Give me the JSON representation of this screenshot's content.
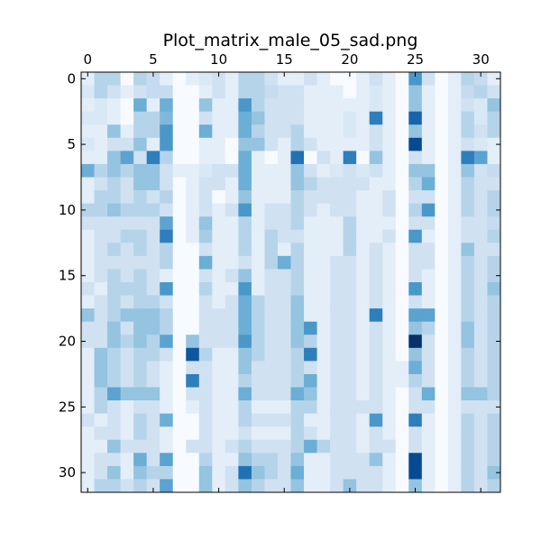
{
  "chart_data": {
    "type": "heatmap",
    "title": "Plot_matrix_male_05_sad.png",
    "colormap": "Blues",
    "x_axis_position": "top",
    "x_range": [
      -0.5,
      31.5
    ],
    "y_range": [
      -0.5,
      31.5
    ],
    "x_ticks": [
      0,
      5,
      10,
      15,
      20,
      25,
      30
    ],
    "y_ticks": [
      0,
      5,
      10,
      15,
      20,
      25,
      30
    ],
    "grid": false,
    "values_scale": "0 (white) to 1 (darkest blue), estimated from cell shading",
    "values": [
      [
        0.1,
        0.3,
        0.3,
        0.0,
        0.3,
        0.25,
        0.1,
        0.0,
        0.1,
        0.15,
        0.2,
        0.1,
        0.3,
        0.3,
        0.2,
        0.1,
        0.1,
        0.2,
        0.1,
        0.0,
        0.0,
        0.1,
        0.2,
        0.1,
        0.0,
        0.6,
        0.2,
        0.0,
        0.1,
        0.3,
        0.25,
        0.1
      ],
      [
        0.15,
        0.3,
        0.2,
        0.1,
        0.2,
        0.25,
        0.25,
        0.0,
        0.0,
        0.1,
        0.2,
        0.1,
        0.3,
        0.3,
        0.25,
        0.2,
        0.2,
        0.1,
        0.1,
        0.1,
        0.0,
        0.1,
        0.15,
        0.1,
        0.0,
        0.4,
        0.1,
        0.0,
        0.1,
        0.25,
        0.3,
        0.2
      ],
      [
        0.1,
        0.15,
        0.1,
        0.0,
        0.5,
        0.1,
        0.5,
        0.0,
        0.0,
        0.4,
        0.1,
        0.1,
        0.6,
        0.3,
        0.2,
        0.2,
        0.2,
        0.1,
        0.1,
        0.1,
        0.1,
        0.1,
        0.15,
        0.1,
        0.0,
        0.4,
        0.1,
        0.0,
        0.1,
        0.2,
        0.15,
        0.4
      ],
      [
        0.15,
        0.15,
        0.1,
        0.0,
        0.3,
        0.3,
        0.45,
        0.0,
        0.0,
        0.2,
        0.1,
        0.1,
        0.5,
        0.4,
        0.2,
        0.2,
        0.2,
        0.1,
        0.1,
        0.1,
        0.15,
        0.1,
        0.7,
        0.1,
        0.0,
        0.8,
        0.1,
        0.0,
        0.1,
        0.3,
        0.15,
        0.3
      ],
      [
        0.1,
        0.1,
        0.4,
        0.1,
        0.3,
        0.3,
        0.6,
        0.0,
        0.0,
        0.5,
        0.1,
        0.1,
        0.5,
        0.3,
        0.2,
        0.2,
        0.3,
        0.1,
        0.1,
        0.1,
        0.15,
        0.1,
        0.2,
        0.1,
        0.0,
        0.4,
        0.1,
        0.0,
        0.1,
        0.3,
        0.2,
        0.3
      ],
      [
        0.15,
        0.1,
        0.2,
        0.2,
        0.4,
        0.1,
        0.6,
        0.0,
        0.0,
        0.1,
        0.1,
        0.0,
        0.4,
        0.4,
        0.2,
        0.1,
        0.3,
        0.2,
        0.1,
        0.1,
        0.1,
        0.1,
        0.2,
        0.1,
        0.0,
        0.9,
        0.1,
        0.0,
        0.1,
        0.2,
        0.15,
        0.1
      ],
      [
        0.1,
        0.1,
        0.4,
        0.55,
        0.2,
        0.7,
        0.3,
        0.0,
        0.0,
        0.1,
        0.1,
        0.0,
        0.5,
        0.1,
        0.0,
        0.1,
        0.75,
        0.0,
        0.2,
        0.1,
        0.7,
        0.0,
        0.4,
        0.1,
        0.0,
        0.2,
        0.1,
        0.0,
        0.1,
        0.7,
        0.55,
        0.1
      ],
      [
        0.5,
        0.3,
        0.4,
        0.3,
        0.4,
        0.4,
        0.2,
        0.1,
        0.1,
        0.15,
        0.2,
        0.2,
        0.5,
        0.1,
        0.1,
        0.1,
        0.4,
        0.2,
        0.1,
        0.15,
        0.2,
        0.15,
        0.2,
        0.1,
        0.0,
        0.4,
        0.4,
        0.0,
        0.1,
        0.4,
        0.2,
        0.25
      ],
      [
        0.1,
        0.2,
        0.3,
        0.2,
        0.4,
        0.4,
        0.2,
        0.0,
        0.1,
        0.2,
        0.2,
        0.1,
        0.5,
        0.1,
        0.1,
        0.1,
        0.4,
        0.3,
        0.2,
        0.2,
        0.2,
        0.2,
        0.1,
        0.1,
        0.0,
        0.3,
        0.5,
        0.0,
        0.1,
        0.3,
        0.2,
        0.2
      ],
      [
        0.1,
        0.3,
        0.3,
        0.2,
        0.3,
        0.2,
        0.3,
        0.0,
        0.1,
        0.2,
        0.0,
        0.1,
        0.4,
        0.1,
        0.1,
        0.1,
        0.3,
        0.2,
        0.2,
        0.2,
        0.2,
        0.1,
        0.1,
        0.2,
        0.0,
        0.2,
        0.2,
        0.0,
        0.1,
        0.3,
        0.2,
        0.3
      ],
      [
        0.3,
        0.3,
        0.4,
        0.3,
        0.3,
        0.3,
        0.2,
        0.0,
        0.1,
        0.2,
        0.1,
        0.2,
        0.6,
        0.1,
        0.2,
        0.2,
        0.3,
        0.2,
        0.1,
        0.2,
        0.2,
        0.1,
        0.1,
        0.2,
        0.0,
        0.3,
        0.6,
        0.0,
        0.1,
        0.3,
        0.2,
        0.3
      ],
      [
        0.2,
        0.2,
        0.2,
        0.2,
        0.2,
        0.2,
        0.55,
        0.0,
        0.1,
        0.4,
        0.1,
        0.1,
        0.3,
        0.1,
        0.2,
        0.2,
        0.3,
        0.1,
        0.1,
        0.1,
        0.3,
        0.1,
        0.1,
        0.1,
        0.0,
        0.2,
        0.2,
        0.0,
        0.1,
        0.2,
        0.2,
        0.25
      ],
      [
        0.1,
        0.2,
        0.2,
        0.3,
        0.3,
        0.2,
        0.7,
        0.0,
        0.1,
        0.35,
        0.1,
        0.1,
        0.3,
        0.1,
        0.3,
        0.2,
        0.2,
        0.1,
        0.1,
        0.1,
        0.3,
        0.1,
        0.1,
        0.2,
        0.0,
        0.6,
        0.1,
        0.0,
        0.1,
        0.2,
        0.2,
        0.3
      ],
      [
        0.1,
        0.2,
        0.3,
        0.2,
        0.3,
        0.2,
        0.3,
        0.0,
        0.0,
        0.2,
        0.1,
        0.1,
        0.3,
        0.1,
        0.3,
        0.1,
        0.3,
        0.1,
        0.1,
        0.1,
        0.3,
        0.1,
        0.2,
        0.1,
        0.0,
        0.2,
        0.2,
        0.0,
        0.1,
        0.4,
        0.2,
        0.2
      ],
      [
        0.1,
        0.2,
        0.2,
        0.2,
        0.2,
        0.2,
        0.3,
        0.0,
        0.0,
        0.5,
        0.1,
        0.1,
        0.2,
        0.1,
        0.3,
        0.5,
        0.3,
        0.1,
        0.1,
        0.2,
        0.2,
        0.1,
        0.2,
        0.1,
        0.0,
        0.2,
        0.2,
        0.0,
        0.1,
        0.3,
        0.2,
        0.3
      ],
      [
        0.1,
        0.2,
        0.3,
        0.2,
        0.3,
        0.2,
        0.1,
        0.0,
        0.0,
        0.2,
        0.1,
        0.2,
        0.4,
        0.1,
        0.2,
        0.2,
        0.3,
        0.1,
        0.1,
        0.2,
        0.2,
        0.1,
        0.2,
        0.1,
        0.0,
        0.2,
        0.1,
        0.0,
        0.1,
        0.3,
        0.2,
        0.3
      ],
      [
        0.2,
        0.1,
        0.3,
        0.3,
        0.3,
        0.2,
        0.6,
        0.0,
        0.0,
        0.3,
        0.1,
        0.1,
        0.6,
        0.1,
        0.2,
        0.2,
        0.3,
        0.1,
        0.1,
        0.2,
        0.2,
        0.1,
        0.2,
        0.1,
        0.0,
        0.6,
        0.1,
        0.0,
        0.1,
        0.3,
        0.2,
        0.4
      ],
      [
        0.1,
        0.2,
        0.3,
        0.2,
        0.3,
        0.3,
        0.2,
        0.0,
        0.0,
        0.2,
        0.1,
        0.2,
        0.5,
        0.3,
        0.2,
        0.2,
        0.4,
        0.1,
        0.1,
        0.2,
        0.2,
        0.1,
        0.2,
        0.1,
        0.0,
        0.2,
        0.1,
        0.0,
        0.1,
        0.3,
        0.2,
        0.3
      ],
      [
        0.4,
        0.2,
        0.3,
        0.4,
        0.4,
        0.4,
        0.3,
        0.0,
        0.0,
        0.2,
        0.2,
        0.2,
        0.5,
        0.3,
        0.2,
        0.2,
        0.4,
        0.1,
        0.1,
        0.2,
        0.2,
        0.1,
        0.7,
        0.1,
        0.0,
        0.55,
        0.55,
        0.0,
        0.1,
        0.3,
        0.2,
        0.3
      ],
      [
        0.2,
        0.2,
        0.4,
        0.2,
        0.4,
        0.4,
        0.3,
        0.0,
        0.0,
        0.2,
        0.2,
        0.2,
        0.5,
        0.3,
        0.2,
        0.2,
        0.4,
        0.6,
        0.1,
        0.2,
        0.2,
        0.1,
        0.2,
        0.1,
        0.0,
        0.4,
        0.3,
        0.0,
        0.1,
        0.4,
        0.2,
        0.3
      ],
      [
        0.2,
        0.2,
        0.4,
        0.3,
        0.4,
        0.3,
        0.55,
        0.0,
        0.4,
        0.2,
        0.2,
        0.2,
        0.6,
        0.3,
        0.2,
        0.2,
        0.4,
        0.3,
        0.1,
        0.2,
        0.2,
        0.1,
        0.2,
        0.1,
        0.0,
        1.0,
        0.2,
        0.0,
        0.1,
        0.4,
        0.2,
        0.3
      ],
      [
        0.1,
        0.4,
        0.3,
        0.2,
        0.3,
        0.3,
        0.2,
        0.0,
        0.85,
        0.3,
        0.1,
        0.1,
        0.4,
        0.3,
        0.2,
        0.2,
        0.3,
        0.7,
        0.1,
        0.2,
        0.2,
        0.1,
        0.2,
        0.1,
        0.0,
        0.4,
        0.2,
        0.0,
        0.1,
        0.3,
        0.2,
        0.3
      ],
      [
        0.1,
        0.4,
        0.3,
        0.2,
        0.3,
        0.2,
        0.1,
        0.0,
        0.2,
        0.2,
        0.1,
        0.1,
        0.4,
        0.2,
        0.2,
        0.2,
        0.3,
        0.2,
        0.1,
        0.2,
        0.2,
        0.1,
        0.2,
        0.1,
        0.1,
        0.5,
        0.2,
        0.0,
        0.1,
        0.3,
        0.2,
        0.3
      ],
      [
        0.1,
        0.4,
        0.3,
        0.2,
        0.3,
        0.2,
        0.1,
        0.0,
        0.7,
        0.2,
        0.1,
        0.1,
        0.3,
        0.2,
        0.2,
        0.2,
        0.3,
        0.5,
        0.1,
        0.2,
        0.2,
        0.1,
        0.2,
        0.1,
        0.1,
        0.3,
        0.2,
        0.0,
        0.1,
        0.3,
        0.2,
        0.3
      ],
      [
        0.1,
        0.3,
        0.55,
        0.4,
        0.4,
        0.4,
        0.1,
        0.0,
        0.2,
        0.2,
        0.1,
        0.1,
        0.5,
        0.2,
        0.2,
        0.2,
        0.5,
        0.4,
        0.1,
        0.2,
        0.2,
        0.1,
        0.2,
        0.1,
        0.0,
        0.2,
        0.5,
        0.0,
        0.1,
        0.4,
        0.4,
        0.3
      ],
      [
        0.1,
        0.3,
        0.2,
        0.1,
        0.2,
        0.2,
        0.1,
        0.0,
        0.1,
        0.2,
        0.1,
        0.1,
        0.3,
        0.1,
        0.1,
        0.1,
        0.3,
        0.3,
        0.1,
        0.2,
        0.2,
        0.2,
        0.2,
        0.1,
        0.0,
        0.2,
        0.2,
        0.0,
        0.1,
        0.2,
        0.2,
        0.2
      ],
      [
        0.2,
        0.1,
        0.2,
        0.1,
        0.3,
        0.2,
        0.5,
        0.0,
        0.0,
        0.2,
        0.1,
        0.1,
        0.3,
        0.2,
        0.2,
        0.2,
        0.3,
        0.1,
        0.1,
        0.2,
        0.2,
        0.1,
        0.6,
        0.1,
        0.0,
        0.7,
        0.1,
        0.0,
        0.1,
        0.3,
        0.2,
        0.3
      ],
      [
        0.1,
        0.2,
        0.2,
        0.1,
        0.3,
        0.2,
        0.1,
        0.0,
        0.0,
        0.2,
        0.1,
        0.1,
        0.2,
        0.1,
        0.1,
        0.1,
        0.3,
        0.2,
        0.1,
        0.2,
        0.2,
        0.1,
        0.2,
        0.1,
        0.0,
        0.2,
        0.1,
        0.0,
        0.1,
        0.3,
        0.2,
        0.3
      ],
      [
        0.1,
        0.1,
        0.4,
        0.2,
        0.2,
        0.2,
        0.1,
        0.0,
        0.2,
        0.2,
        0.1,
        0.2,
        0.3,
        0.2,
        0.2,
        0.2,
        0.3,
        0.5,
        0.3,
        0.2,
        0.2,
        0.1,
        0.2,
        0.2,
        0.0,
        0.2,
        0.1,
        0.0,
        0.1,
        0.3,
        0.2,
        0.3
      ],
      [
        0.1,
        0.2,
        0.2,
        0.1,
        0.5,
        0.2,
        0.55,
        0.0,
        0.0,
        0.3,
        0.1,
        0.1,
        0.4,
        0.3,
        0.3,
        0.2,
        0.4,
        0.1,
        0.1,
        0.2,
        0.2,
        0.2,
        0.4,
        0.1,
        0.0,
        0.9,
        0.1,
        0.0,
        0.1,
        0.3,
        0.2,
        0.3
      ],
      [
        0.1,
        0.2,
        0.4,
        0.1,
        0.4,
        0.3,
        0.3,
        0.0,
        0.0,
        0.4,
        0.1,
        0.2,
        0.75,
        0.4,
        0.3,
        0.2,
        0.5,
        0.1,
        0.1,
        0.2,
        0.2,
        0.2,
        0.2,
        0.1,
        0.0,
        0.9,
        0.1,
        0.0,
        0.1,
        0.3,
        0.2,
        0.4
      ],
      [
        0.1,
        0.3,
        0.3,
        0.2,
        0.3,
        0.2,
        0.55,
        0.0,
        0.0,
        0.4,
        0.1,
        0.2,
        0.4,
        0.3,
        0.2,
        0.2,
        0.4,
        0.1,
        0.1,
        0.2,
        0.4,
        0.2,
        0.2,
        0.1,
        0.0,
        0.4,
        0.1,
        0.0,
        0.1,
        0.3,
        0.2,
        0.3
      ]
    ]
  }
}
